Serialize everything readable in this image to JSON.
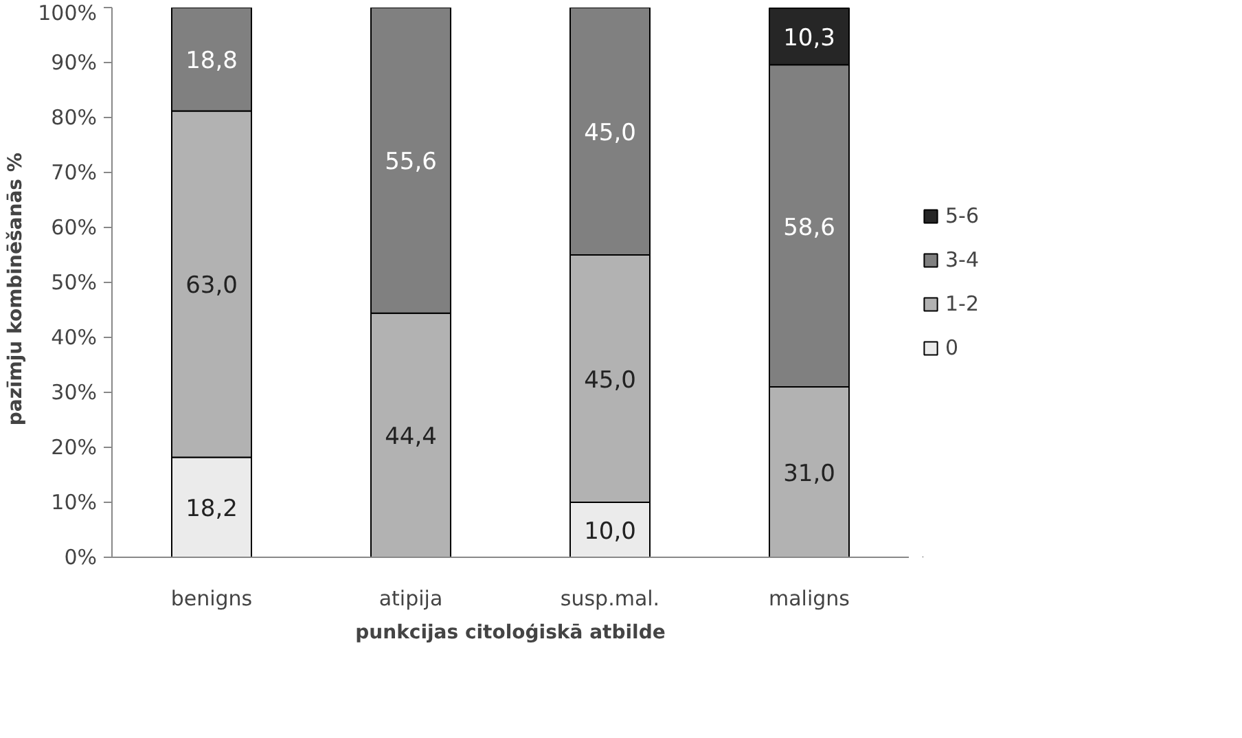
{
  "chart_data": {
    "type": "bar",
    "stacked": true,
    "xlabel": "punkcijas citoloģiskā atbilde",
    "ylabel": "pazīmju  kombinēšanās  %",
    "categories": [
      "benigns",
      "atipija",
      "susp.mal.",
      "maligns"
    ],
    "series": [
      {
        "name": "0",
        "color": "#ebebeb",
        "values": [
          18.2,
          null,
          10.0,
          null
        ],
        "value_labels": [
          "18,2",
          null,
          "10,0",
          null
        ]
      },
      {
        "name": "1-2",
        "color": "#b2b2b2",
        "values": [
          63.0,
          44.4,
          45.0,
          31.0
        ],
        "value_labels": [
          "63,0",
          "44,4",
          "45,0",
          "31,0"
        ]
      },
      {
        "name": "3-4",
        "color": "#808080",
        "values": [
          18.8,
          55.6,
          45.0,
          58.6
        ],
        "value_labels": [
          "18,8",
          "55,6",
          "45,0",
          "58,6"
        ]
      },
      {
        "name": "5-6",
        "color": "#262626",
        "values": [
          null,
          null,
          null,
          10.3
        ],
        "value_labels": [
          null,
          null,
          null,
          "10,3"
        ]
      }
    ],
    "ylim": [
      0,
      100
    ],
    "yticks": [
      {
        "value": 0,
        "label": "0%"
      },
      {
        "value": 10,
        "label": "10%"
      },
      {
        "value": 20,
        "label": "20%"
      },
      {
        "value": 30,
        "label": "30%"
      },
      {
        "value": 40,
        "label": "40%"
      },
      {
        "value": 50,
        "label": "50%"
      },
      {
        "value": 60,
        "label": "60%"
      },
      {
        "value": 70,
        "label": "70%"
      },
      {
        "value": 80,
        "label": "80%"
      },
      {
        "value": 90,
        "label": "90%"
      },
      {
        "value": 100,
        "label": "100%"
      }
    ],
    "grid": false,
    "legend": "right"
  }
}
